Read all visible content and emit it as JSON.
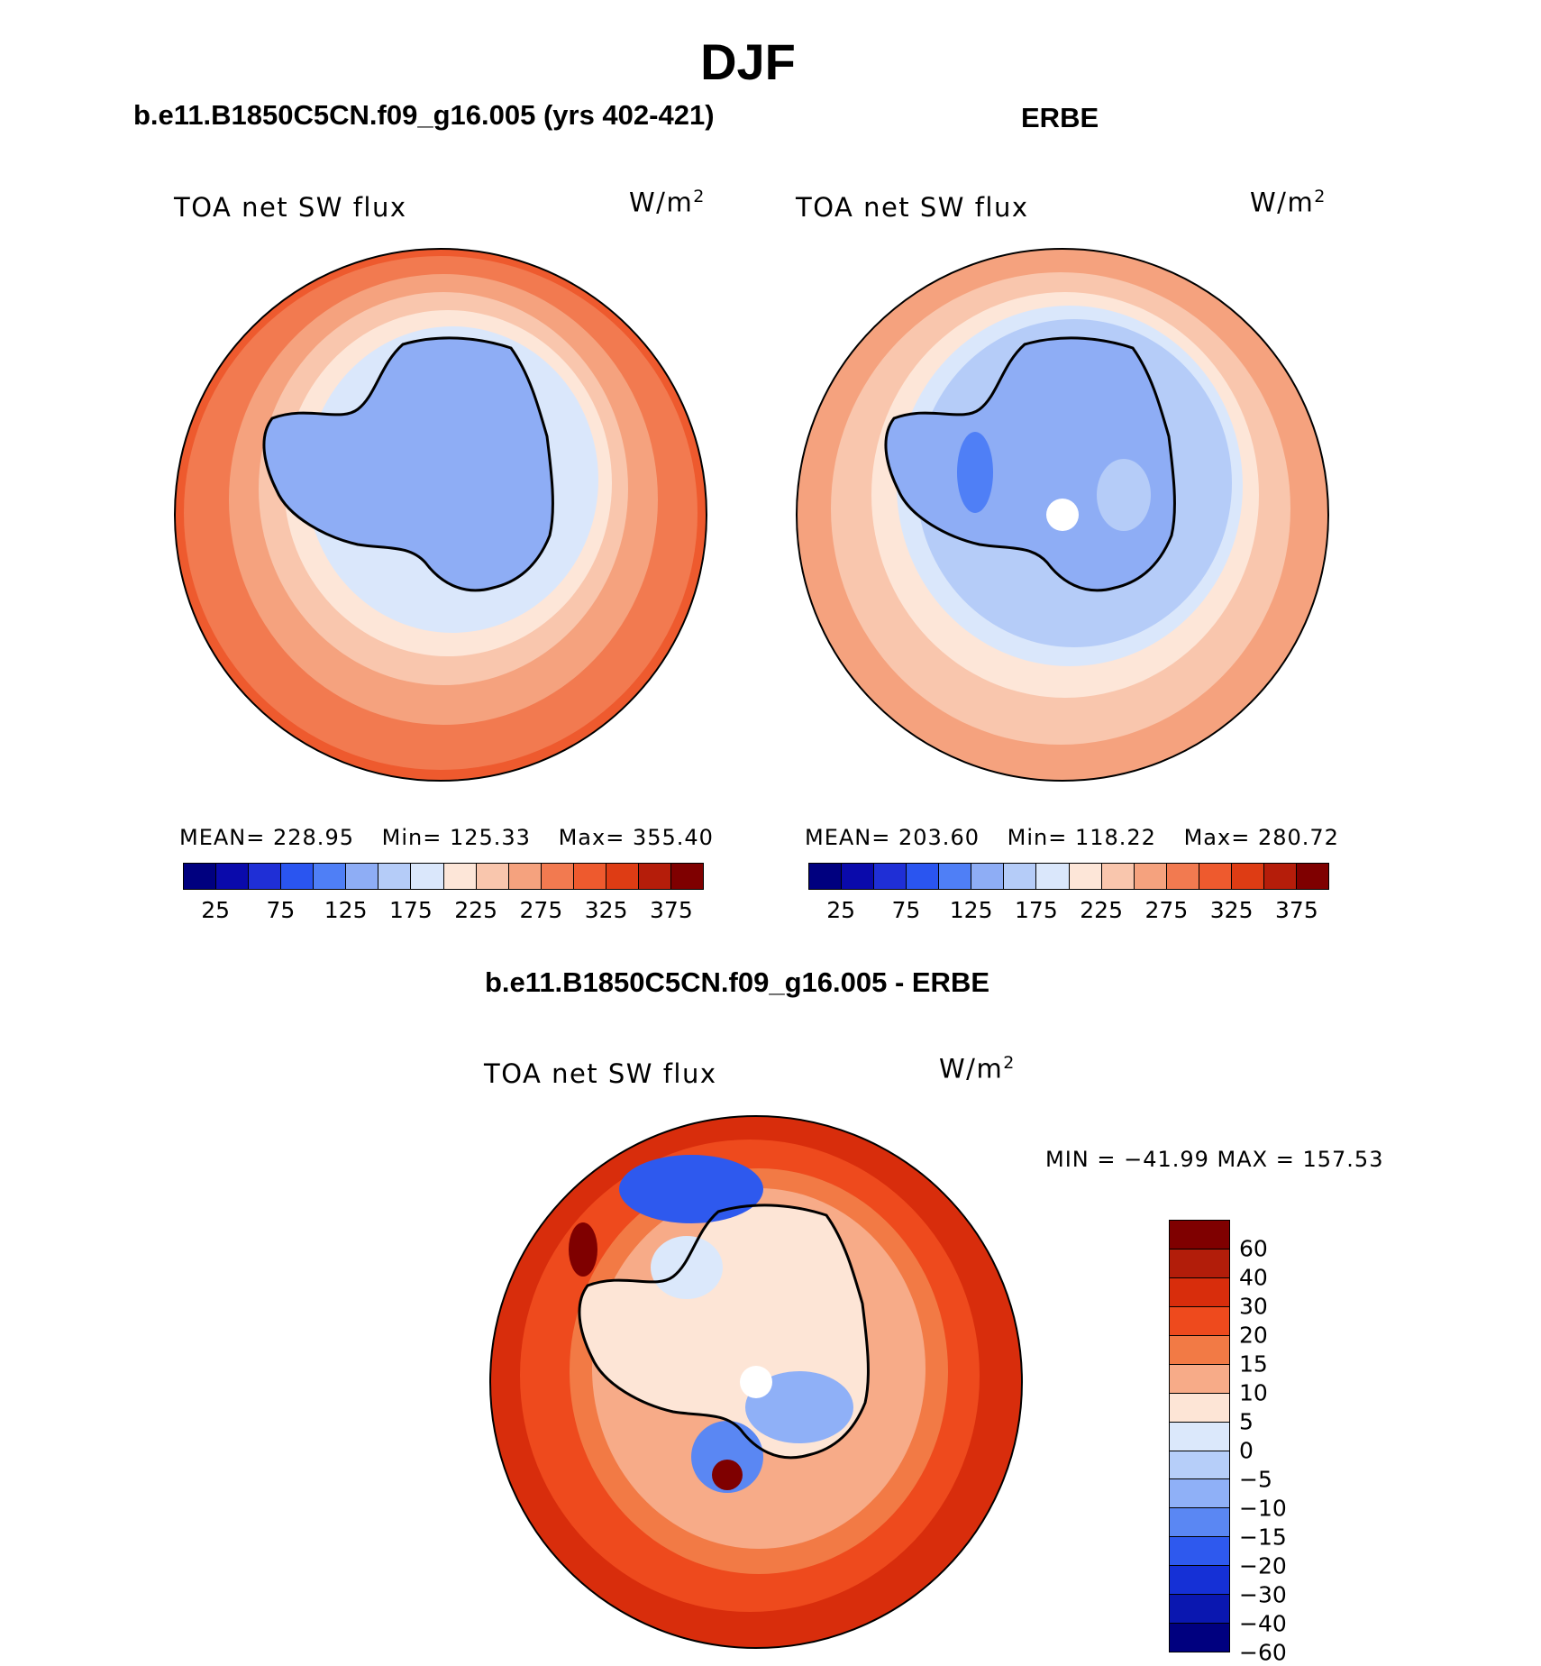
{
  "main_title": "DJF",
  "colors": {
    "abs_scale": [
      "#00007f",
      "#0a0aab",
      "#1f2fd6",
      "#2a55f0",
      "#4f7ff6",
      "#8eadf5",
      "#b5ccf8",
      "#dae7fb",
      "#fde6d8",
      "#f9c6ad",
      "#f5a27e",
      "#f27a50",
      "#ee5a2e",
      "#de3c14",
      "#b51d0a",
      "#7f0000"
    ],
    "diff_scale": [
      "#7f0000",
      "#b21d0a",
      "#d82d0c",
      "#ee4a1d",
      "#f27a45",
      "#f7ab88",
      "#fde5d6",
      "#dbe8fb",
      "#b6cef9",
      "#8fb0f7",
      "#5a87f3",
      "#2e59ee",
      "#1530d6",
      "#0a17b0",
      "#00007f"
    ]
  },
  "panels": {
    "model": {
      "title": "b.e11.B1850C5CN.f09_g16.005 (yrs 402-421)",
      "variable": "TOA net SW flux",
      "units": "W/m",
      "units_sup": "2",
      "mean_label": "MEAN=",
      "mean": "228.95",
      "min_label": "Min=",
      "min": "125.33",
      "max_label": "Max=",
      "max": "355.40"
    },
    "obs": {
      "title": "ERBE",
      "variable": "TOA net SW flux",
      "units": "W/m",
      "units_sup": "2",
      "mean_label": "MEAN=",
      "mean": "203.60",
      "min_label": "Min=",
      "min": "118.22",
      "max_label": "Max=",
      "max": "280.72"
    },
    "diff": {
      "title": "b.e11.B1850C5CN.f09_g16.005 - ERBE",
      "variable": "TOA net SW flux",
      "units": "W/m",
      "units_sup": "2",
      "minmax": "MIN = −41.99 MAX = 157.53"
    }
  },
  "chart_data": [
    {
      "type": "heatmap",
      "title": "b.e11.B1850C5CN.f09_g16.005 (yrs 402-421)",
      "variable": "TOA net SW flux",
      "units": "W/m2",
      "projection": "south polar stereographic",
      "stats": {
        "mean": 228.95,
        "min": 125.33,
        "max": 355.4
      },
      "colorbar_ticks": [
        25,
        75,
        125,
        175,
        225,
        275,
        325,
        375
      ],
      "levels_range": [
        0,
        400
      ],
      "n_levels": 16
    },
    {
      "type": "heatmap",
      "title": "ERBE",
      "variable": "TOA net SW flux",
      "units": "W/m2",
      "projection": "south polar stereographic",
      "stats": {
        "mean": 203.6,
        "min": 118.22,
        "max": 280.72
      },
      "colorbar_ticks": [
        25,
        75,
        125,
        175,
        225,
        275,
        325,
        375
      ],
      "levels_range": [
        0,
        400
      ],
      "n_levels": 16
    },
    {
      "type": "heatmap",
      "title": "b.e11.B1850C5CN.f09_g16.005 - ERBE",
      "variable": "TOA net SW flux",
      "units": "W/m2",
      "projection": "south polar stereographic",
      "stats": {
        "min": -41.99,
        "max": 157.53
      },
      "colorbar_ticks": [
        "60",
        "40",
        "30",
        "20",
        "15",
        "10",
        "5",
        "0",
        "−5",
        "−10",
        "−15",
        "−20",
        "−30",
        "−40",
        "−60"
      ]
    }
  ]
}
